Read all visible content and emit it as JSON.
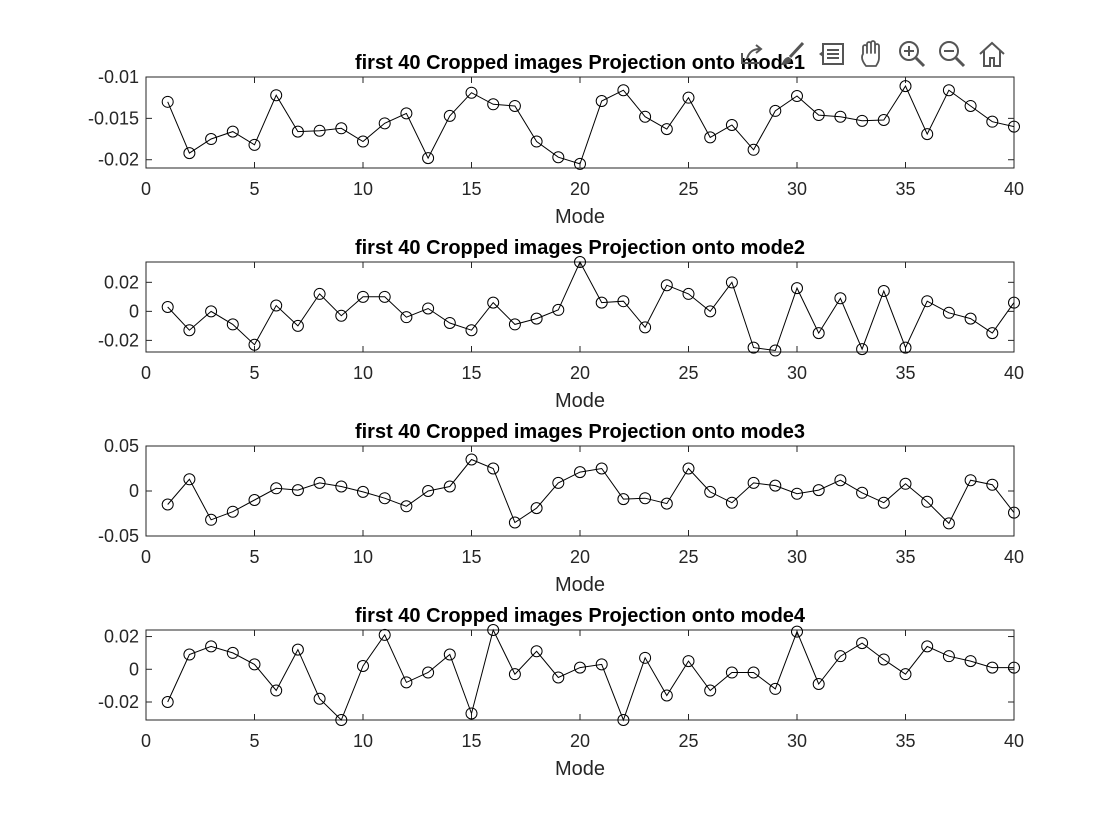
{
  "figure": {
    "background": "#ffffff"
  },
  "toolbar": {
    "items": [
      {
        "name": "export",
        "icon": "export-icon"
      },
      {
        "name": "brush",
        "icon": "brush-icon"
      },
      {
        "name": "data-tips",
        "icon": "data-tips-icon"
      },
      {
        "name": "pan",
        "icon": "pan-icon"
      },
      {
        "name": "zoom-in",
        "icon": "zoom-in-icon"
      },
      {
        "name": "zoom-out",
        "icon": "zoom-out-icon"
      },
      {
        "name": "home",
        "icon": "home-icon"
      }
    ]
  },
  "chart_data": [
    {
      "type": "line",
      "title": "first 40 Cropped images Projection onto mode1",
      "xlabel": "Mode",
      "ylabel": "",
      "xlim": [
        0,
        40
      ],
      "ylim": [
        -0.021,
        -0.01
      ],
      "xticks": [
        0,
        5,
        10,
        15,
        20,
        25,
        30,
        35,
        40
      ],
      "yticks": [
        -0.01,
        -0.015,
        -0.02
      ],
      "ytick_labels": [
        "-0.01",
        "-0.015",
        "-0.02"
      ],
      "marker": "circle",
      "color": "#000000",
      "x": [
        1,
        2,
        3,
        4,
        5,
        6,
        7,
        8,
        9,
        10,
        11,
        12,
        13,
        14,
        15,
        16,
        17,
        18,
        19,
        20,
        21,
        22,
        23,
        24,
        25,
        26,
        27,
        28,
        29,
        30,
        31,
        32,
        33,
        34,
        35,
        36,
        37,
        38,
        39,
        40
      ],
      "values": [
        -0.013,
        -0.0192,
        -0.0175,
        -0.0166,
        -0.0182,
        -0.0122,
        -0.0166,
        -0.0165,
        -0.0162,
        -0.0178,
        -0.0156,
        -0.0144,
        -0.0198,
        -0.0147,
        -0.0119,
        -0.0133,
        -0.0135,
        -0.0178,
        -0.0197,
        -0.0205,
        -0.0129,
        -0.0116,
        -0.0148,
        -0.0163,
        -0.0125,
        -0.0173,
        -0.0158,
        -0.0188,
        -0.0141,
        -0.0123,
        -0.0146,
        -0.0148,
        -0.0153,
        -0.0152,
        -0.0111,
        -0.0169,
        -0.0116,
        -0.0135,
        -0.0154,
        -0.016
      ]
    },
    {
      "type": "line",
      "title": "first 40 Cropped images Projection onto mode2",
      "xlabel": "Mode",
      "ylabel": "",
      "xlim": [
        0,
        40
      ],
      "ylim": [
        -0.028,
        0.034
      ],
      "xticks": [
        0,
        5,
        10,
        15,
        20,
        25,
        30,
        35,
        40
      ],
      "yticks": [
        0.02,
        0,
        -0.02
      ],
      "ytick_labels": [
        "0.02",
        "0",
        "-0.02"
      ],
      "marker": "circle",
      "color": "#000000",
      "x": [
        1,
        2,
        3,
        4,
        5,
        6,
        7,
        8,
        9,
        10,
        11,
        12,
        13,
        14,
        15,
        16,
        17,
        18,
        19,
        20,
        21,
        22,
        23,
        24,
        25,
        26,
        27,
        28,
        29,
        30,
        31,
        32,
        33,
        34,
        35,
        36,
        37,
        38,
        39,
        40
      ],
      "values": [
        0.003,
        -0.013,
        0,
        -0.009,
        -0.023,
        0.004,
        -0.01,
        0.012,
        -0.003,
        0.01,
        0.01,
        -0.004,
        0.002,
        -0.008,
        -0.013,
        0.006,
        -0.009,
        -0.005,
        0.001,
        0.034,
        0.006,
        0.007,
        -0.011,
        0.018,
        0.012,
        0,
        0.02,
        -0.025,
        -0.027,
        0.016,
        -0.015,
        0.009,
        -0.026,
        0.014,
        -0.025,
        0.007,
        -0.001,
        -0.005,
        -0.015,
        0.006
      ]
    },
    {
      "type": "line",
      "title": "first 40 Cropped images Projection onto mode3",
      "xlabel": "Mode",
      "ylabel": "",
      "xlim": [
        0,
        40
      ],
      "ylim": [
        -0.05,
        0.05
      ],
      "xticks": [
        0,
        5,
        10,
        15,
        20,
        25,
        30,
        35,
        40
      ],
      "yticks": [
        0.05,
        0,
        -0.05
      ],
      "ytick_labels": [
        "0.05",
        "0",
        "-0.05"
      ],
      "marker": "circle",
      "color": "#000000",
      "x": [
        1,
        2,
        3,
        4,
        5,
        6,
        7,
        8,
        9,
        10,
        11,
        12,
        13,
        14,
        15,
        16,
        17,
        18,
        19,
        20,
        21,
        22,
        23,
        24,
        25,
        26,
        27,
        28,
        29,
        30,
        31,
        32,
        33,
        34,
        35,
        36,
        37,
        38,
        39,
        40
      ],
      "values": [
        -0.015,
        0.013,
        -0.032,
        -0.023,
        -0.01,
        0.003,
        0.001,
        0.009,
        0.005,
        -0.001,
        -0.008,
        -0.017,
        0,
        0.005,
        0.035,
        0.025,
        -0.035,
        -0.019,
        0.009,
        0.021,
        0.025,
        -0.009,
        -0.008,
        -0.014,
        0.025,
        -0.001,
        -0.013,
        0.009,
        0.006,
        -0.003,
        0.001,
        0.012,
        -0.002,
        -0.013,
        0.008,
        -0.012,
        -0.036,
        0.012,
        0.007,
        -0.024
      ]
    },
    {
      "type": "line",
      "title": "first 40 Cropped images Projection onto mode4",
      "xlabel": "Mode",
      "ylabel": "",
      "xlim": [
        0,
        40
      ],
      "ylim": [
        -0.031,
        0.024
      ],
      "xticks": [
        0,
        5,
        10,
        15,
        20,
        25,
        30,
        35,
        40
      ],
      "yticks": [
        0.02,
        0,
        -0.02
      ],
      "ytick_labels": [
        "0.02",
        "0",
        "-0.02"
      ],
      "marker": "circle",
      "color": "#000000",
      "x": [
        1,
        2,
        3,
        4,
        5,
        6,
        7,
        8,
        9,
        10,
        11,
        12,
        13,
        14,
        15,
        16,
        17,
        18,
        19,
        20,
        21,
        22,
        23,
        24,
        25,
        26,
        27,
        28,
        29,
        30,
        31,
        32,
        33,
        34,
        35,
        36,
        37,
        38,
        39,
        40
      ],
      "values": [
        -0.02,
        0.009,
        0.014,
        0.01,
        0.003,
        -0.013,
        0.012,
        -0.018,
        -0.031,
        0.002,
        0.021,
        -0.008,
        -0.002,
        0.009,
        -0.027,
        0.024,
        -0.003,
        0.011,
        -0.005,
        0.001,
        0.003,
        -0.031,
        0.007,
        -0.016,
        0.005,
        -0.013,
        -0.002,
        -0.002,
        -0.012,
        0.023,
        -0.009,
        0.008,
        0.016,
        0.006,
        -0.003,
        0.014,
        0.008,
        0.005,
        0.001,
        0.001
      ]
    }
  ]
}
